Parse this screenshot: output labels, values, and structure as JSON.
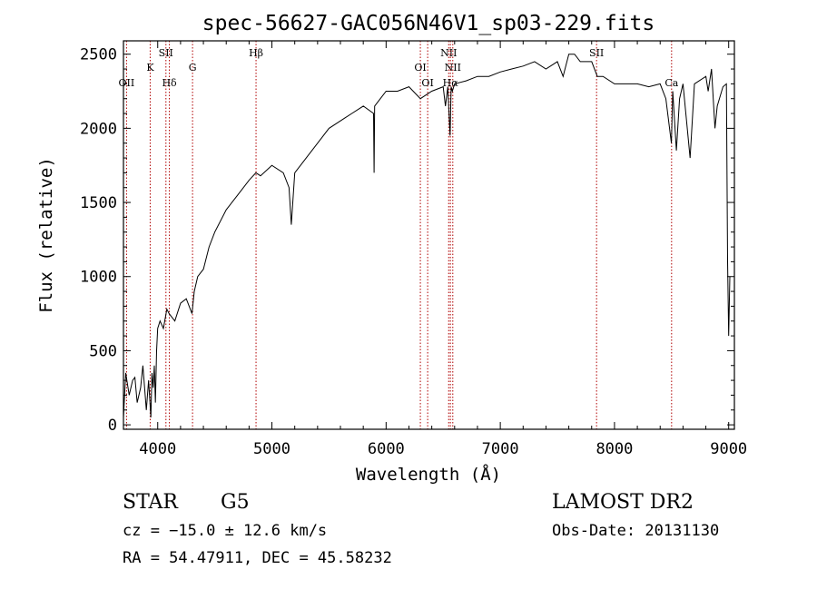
{
  "chart_data": {
    "type": "line",
    "title": "spec-56627-GAC056N46V1_sp03-229.fits",
    "xlabel": "Wavelength (Å)",
    "ylabel": "Flux (relative)",
    "xlim": [
      3700,
      9050
    ],
    "ylim": [
      -30,
      2590
    ],
    "x_ticks": [
      4000,
      5000,
      6000,
      7000,
      8000,
      9000
    ],
    "y_ticks": [
      0,
      500,
      1000,
      1500,
      2000,
      2500
    ],
    "grid": false,
    "series": [
      {
        "x": [
          3700,
          3720,
          3750,
          3780,
          3800,
          3820,
          3850,
          3870,
          3900,
          3920,
          3940,
          3950,
          3960,
          3970,
          3980,
          3990,
          4000,
          4020,
          4050,
          4080,
          4100,
          4150,
          4200,
          4250,
          4300,
          4320,
          4350,
          4400,
          4450,
          4500,
          4600,
          4700,
          4800,
          4860,
          4900,
          5000,
          5100,
          5150,
          5170,
          5200,
          5300,
          5400,
          5500,
          5600,
          5700,
          5800,
          5890,
          5895,
          5900,
          5950,
          6000,
          6100,
          6200,
          6300,
          6400,
          6500,
          6520,
          6540,
          6560,
          6570,
          6580,
          6600,
          6700,
          6800,
          6900,
          7000,
          7100,
          7200,
          7300,
          7400,
          7500,
          7550,
          7600,
          7650,
          7700,
          7800,
          7850,
          7900,
          8000,
          8100,
          8200,
          8300,
          8400,
          8450,
          8498,
          8510,
          8542,
          8570,
          8600,
          8662,
          8700,
          8800,
          8820,
          8850,
          8880,
          8900,
          8950,
          8980,
          8990,
          9000,
          9010
        ],
        "y": [
          50,
          350,
          200,
          300,
          320,
          150,
          250,
          400,
          100,
          300,
          50,
          350,
          250,
          400,
          150,
          500,
          650,
          700,
          650,
          780,
          750,
          700,
          820,
          850,
          750,
          900,
          1000,
          1050,
          1200,
          1300,
          1450,
          1550,
          1650,
          1700,
          1680,
          1750,
          1700,
          1600,
          1350,
          1700,
          1800,
          1900,
          2000,
          2050,
          2100,
          2150,
          2100,
          1700,
          2150,
          2200,
          2250,
          2250,
          2280,
          2200,
          2250,
          2280,
          2150,
          2280,
          1950,
          2280,
          2250,
          2300,
          2320,
          2350,
          2350,
          2380,
          2400,
          2420,
          2450,
          2400,
          2450,
          2350,
          2500,
          2500,
          2450,
          2450,
          2350,
          2350,
          2300,
          2300,
          2300,
          2280,
          2300,
          2200,
          1900,
          2250,
          1850,
          2200,
          2300,
          1800,
          2300,
          2350,
          2250,
          2400,
          2000,
          2150,
          2280,
          2300,
          1100,
          600,
          1000
        ]
      }
    ],
    "line_markers": [
      {
        "label": "OII",
        "x": 3727,
        "row": 3
      },
      {
        "label": "K",
        "x": 3934,
        "row": 1
      },
      {
        "label": "SII",
        "x": 4072,
        "row": 0
      },
      {
        "label": "Hδ",
        "x": 4102,
        "row": 2
      },
      {
        "label": "G",
        "x": 4305,
        "row": 1
      },
      {
        "label": "Hβ",
        "x": 4861,
        "row": 0
      },
      {
        "label": "OI",
        "x": 6300,
        "row": 1
      },
      {
        "label": "OI",
        "x": 6364,
        "row": 2
      },
      {
        "label": "NII",
        "x": 6548,
        "row": 0
      },
      {
        "label": "NII",
        "x": 6584,
        "row": 1
      },
      {
        "label": "Hα",
        "x": 6563,
        "row": 2
      },
      {
        "label": "SII",
        "x": 7843,
        "row": 0
      },
      {
        "label": "Ca",
        "x": 8500,
        "row": 2
      }
    ]
  },
  "footer": {
    "class_label": "STAR",
    "subclass": "G5",
    "survey": "LAMOST DR2",
    "redshift_text": "cz = −15.0 ± 12.6 km/s",
    "obs_date_text": "Obs-Date: 20131130",
    "coords_text": "RA =  54.47911, DEC =  45.58232"
  }
}
